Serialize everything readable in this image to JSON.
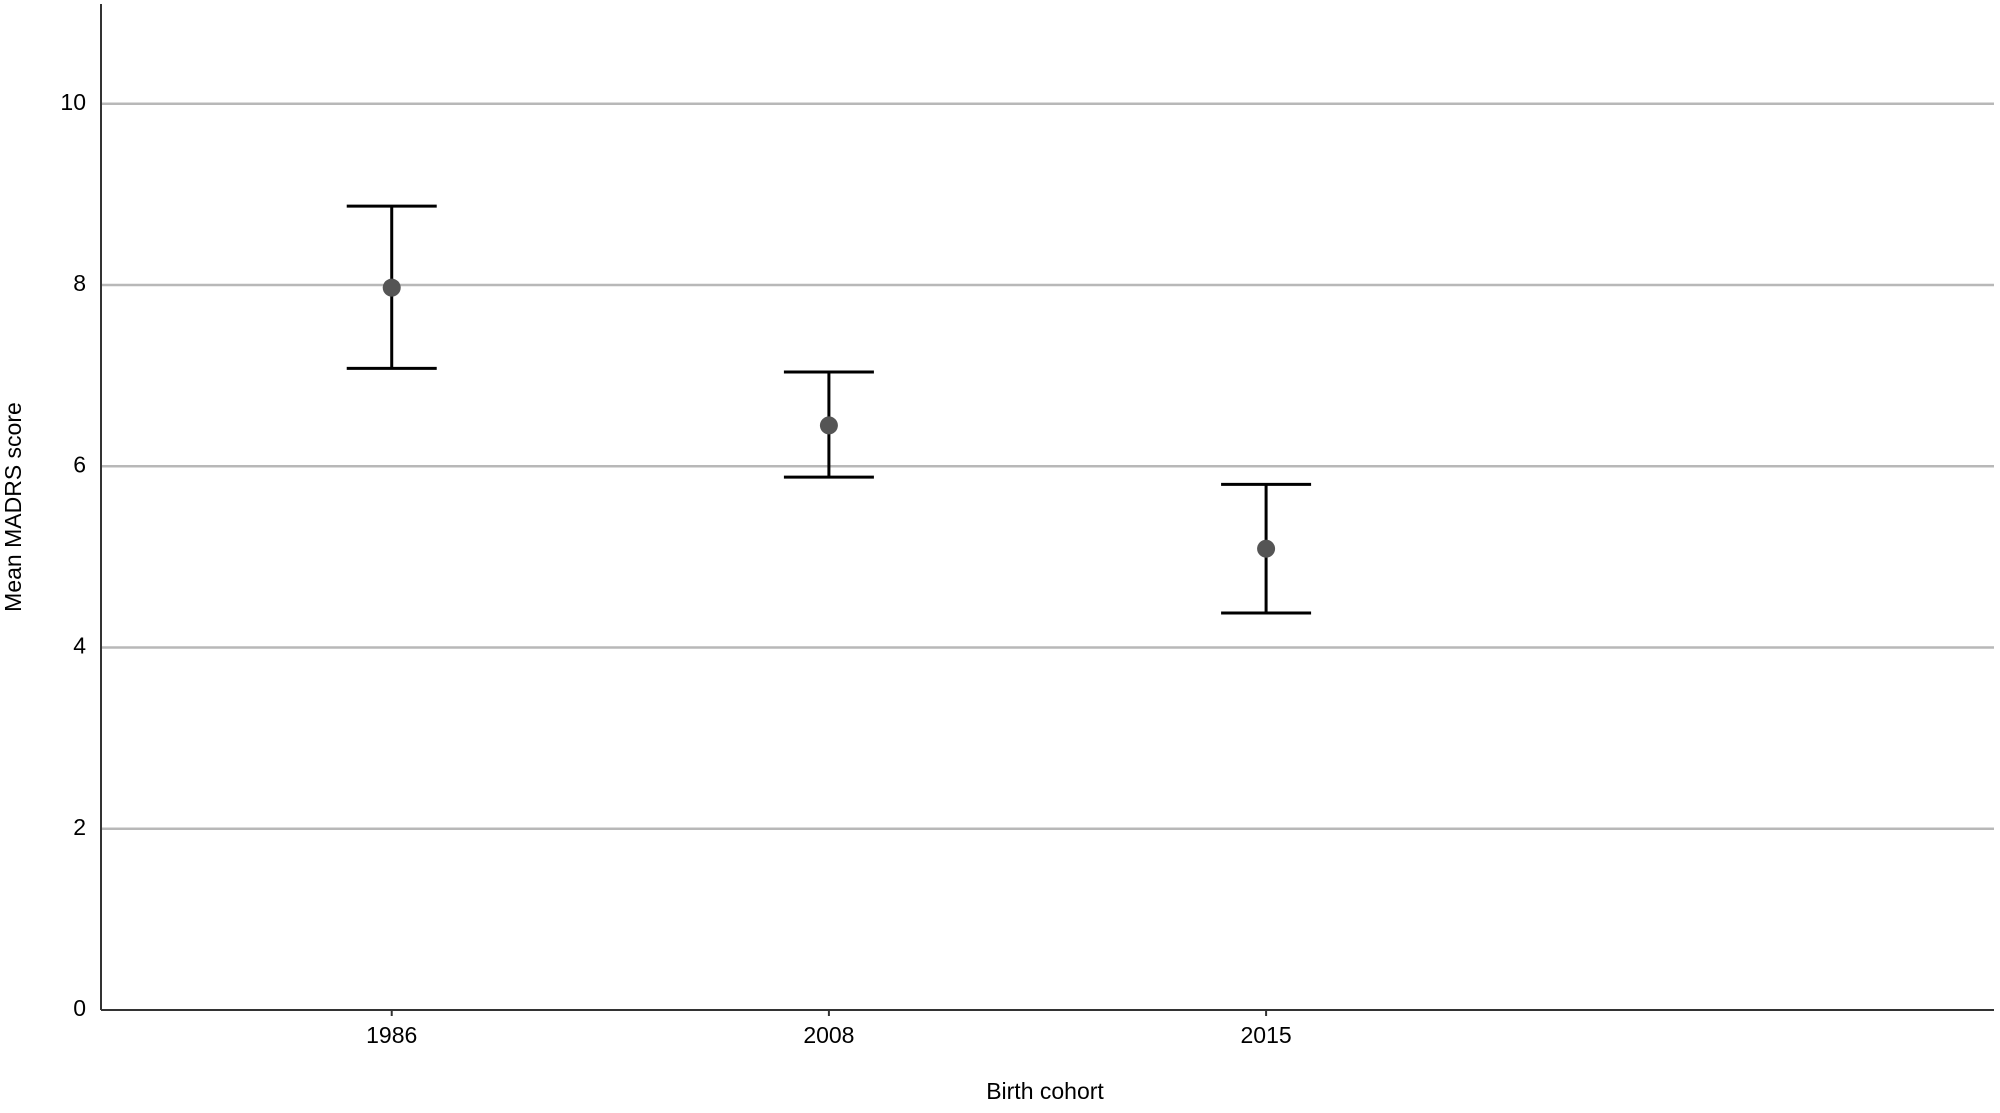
{
  "chart_data": {
    "type": "errorbar",
    "x_label": "Birth cohort",
    "y_label": "Mean MADRS score",
    "categories": [
      "1986",
      "2008",
      "2015"
    ],
    "values": [
      7.97,
      6.45,
      5.09
    ],
    "lower": [
      7.08,
      5.88,
      4.38
    ],
    "upper": [
      8.87,
      7.04,
      5.8
    ],
    "color": "#555555",
    "ylim": [
      0,
      11.1
    ],
    "yticks": [
      0,
      2,
      4,
      6,
      8,
      10
    ],
    "grid": true
  }
}
